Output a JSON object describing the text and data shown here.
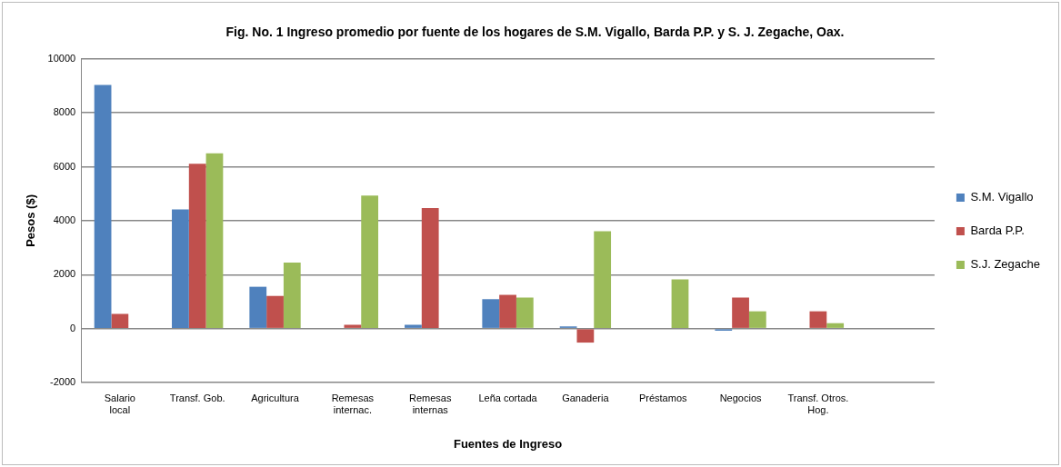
{
  "chart_data": {
    "type": "bar",
    "title": "Fig. No. 1 Ingreso promedio por fuente de los hogares de S.M. Vigallo, Barda P.P. y S. J. Zegache, Oax.",
    "xlabel": "Fuentes de Ingreso",
    "ylabel": "Pesos ($)",
    "categories": [
      "Salario local",
      "Transf. Gob.",
      "Agricultura",
      "Remesas internac.",
      "Remesas internas",
      "Leña cortada",
      "Ganaderia",
      "Préstamos",
      "Negocios",
      "Transf. Otros. Hog.",
      null
    ],
    "series": [
      {
        "name": "S.M. Vigallo",
        "color": "#4f81bd",
        "values": [
          9030,
          4420,
          1550,
          0,
          140,
          1090,
          80,
          0,
          -80,
          null,
          null
        ]
      },
      {
        "name": "Barda P.P.",
        "color": "#c0504d",
        "values": [
          540,
          6110,
          1210,
          140,
          4470,
          1250,
          -520,
          null,
          1150,
          640,
          null
        ]
      },
      {
        "name": "S.J. Zegache",
        "color": "#9bbb59",
        "values": [
          null,
          6500,
          2450,
          4930,
          0,
          1150,
          3610,
          1820,
          640,
          200,
          null
        ]
      }
    ],
    "ylim": [
      -2000,
      10000
    ],
    "yticks": [
      -2000,
      0,
      2000,
      4000,
      6000,
      8000,
      10000
    ],
    "grid": "y",
    "legend": "right"
  }
}
